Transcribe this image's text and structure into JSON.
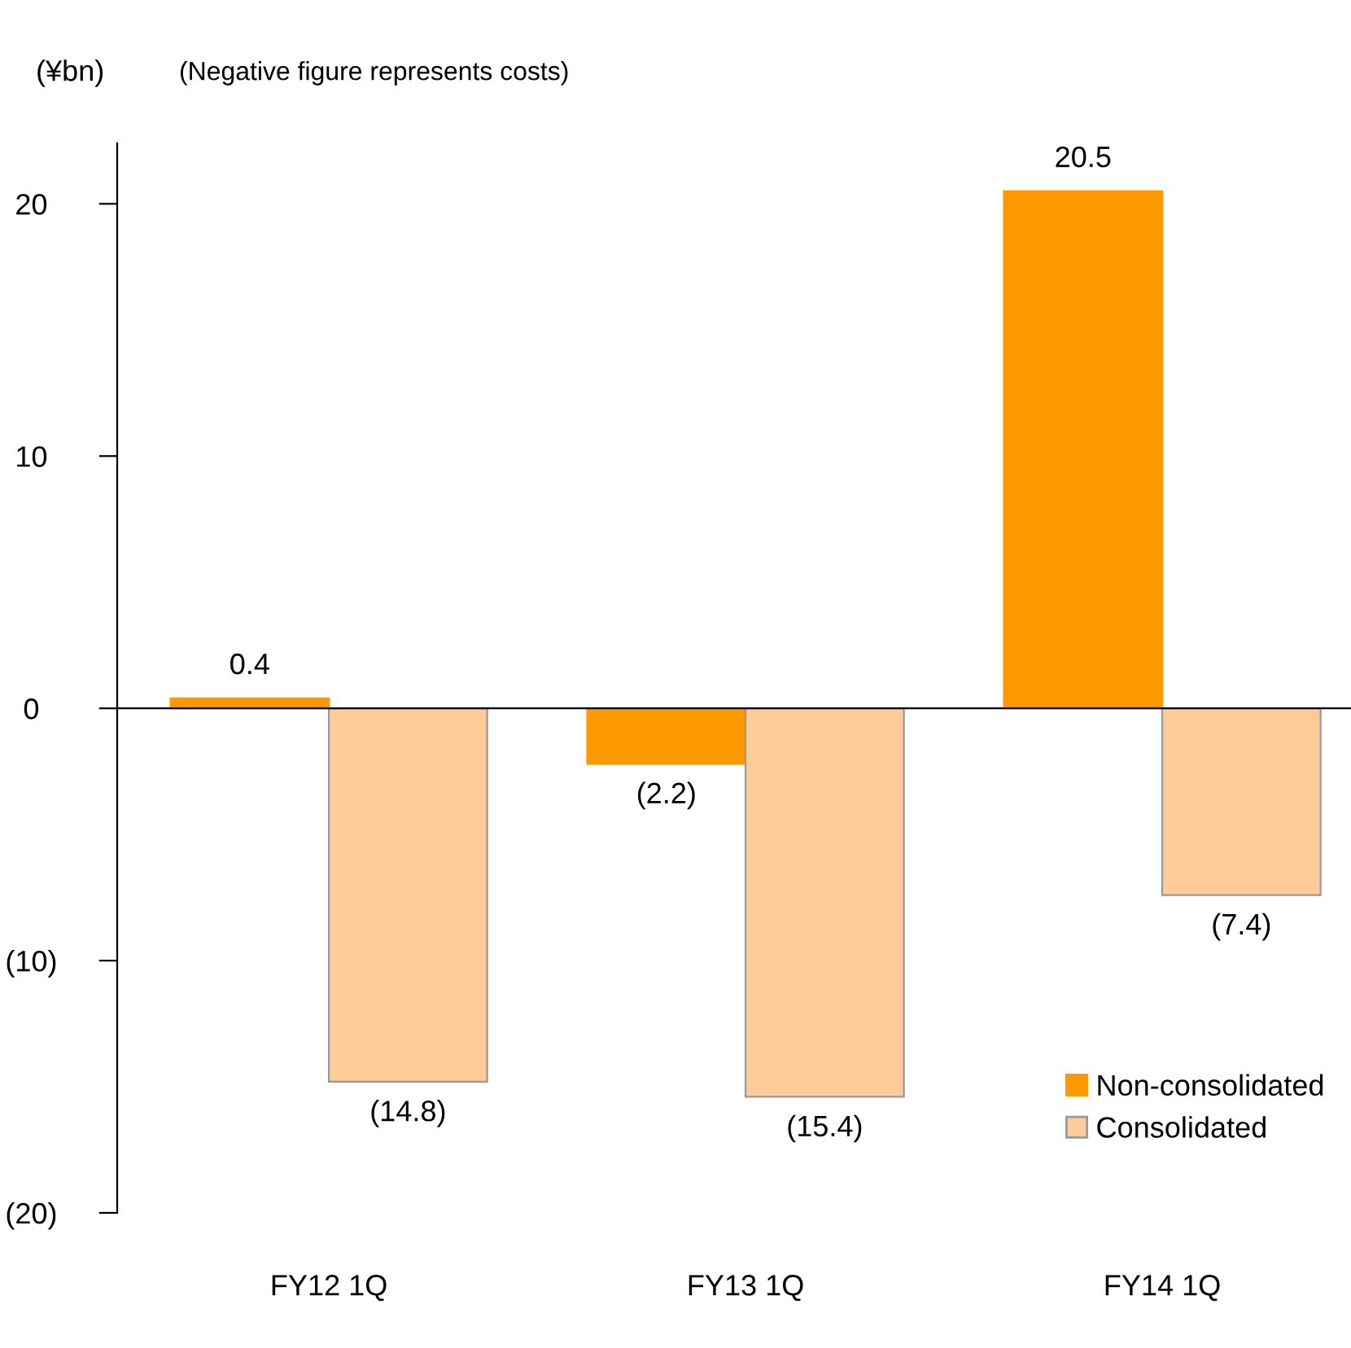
{
  "chart_data": {
    "type": "bar",
    "subtitle": "(Negative figure represents costs)",
    "ylabel": "(¥bn)",
    "categories": [
      "FY12 1Q",
      "FY13 1Q",
      "FY14 1Q"
    ],
    "series": [
      {
        "name": "Non-consolidated",
        "color": "#ff9900",
        "values": [
          0.4,
          -2.2,
          20.5
        ],
        "value_labels": [
          "0.4",
          "(2.2)",
          "20.5"
        ]
      },
      {
        "name": "Consolidated",
        "color": "#ffcc99",
        "values": [
          -14.8,
          -15.4,
          -7.4
        ],
        "value_labels": [
          "(14.8)",
          "(15.4)",
          "(7.4)"
        ]
      }
    ],
    "ylim": [
      -20,
      22.4
    ],
    "yticks": [
      {
        "value": -20,
        "label": "(20)"
      },
      {
        "value": -10,
        "label": "(10)"
      },
      0,
      10,
      20
    ],
    "legend": "bottom right"
  }
}
